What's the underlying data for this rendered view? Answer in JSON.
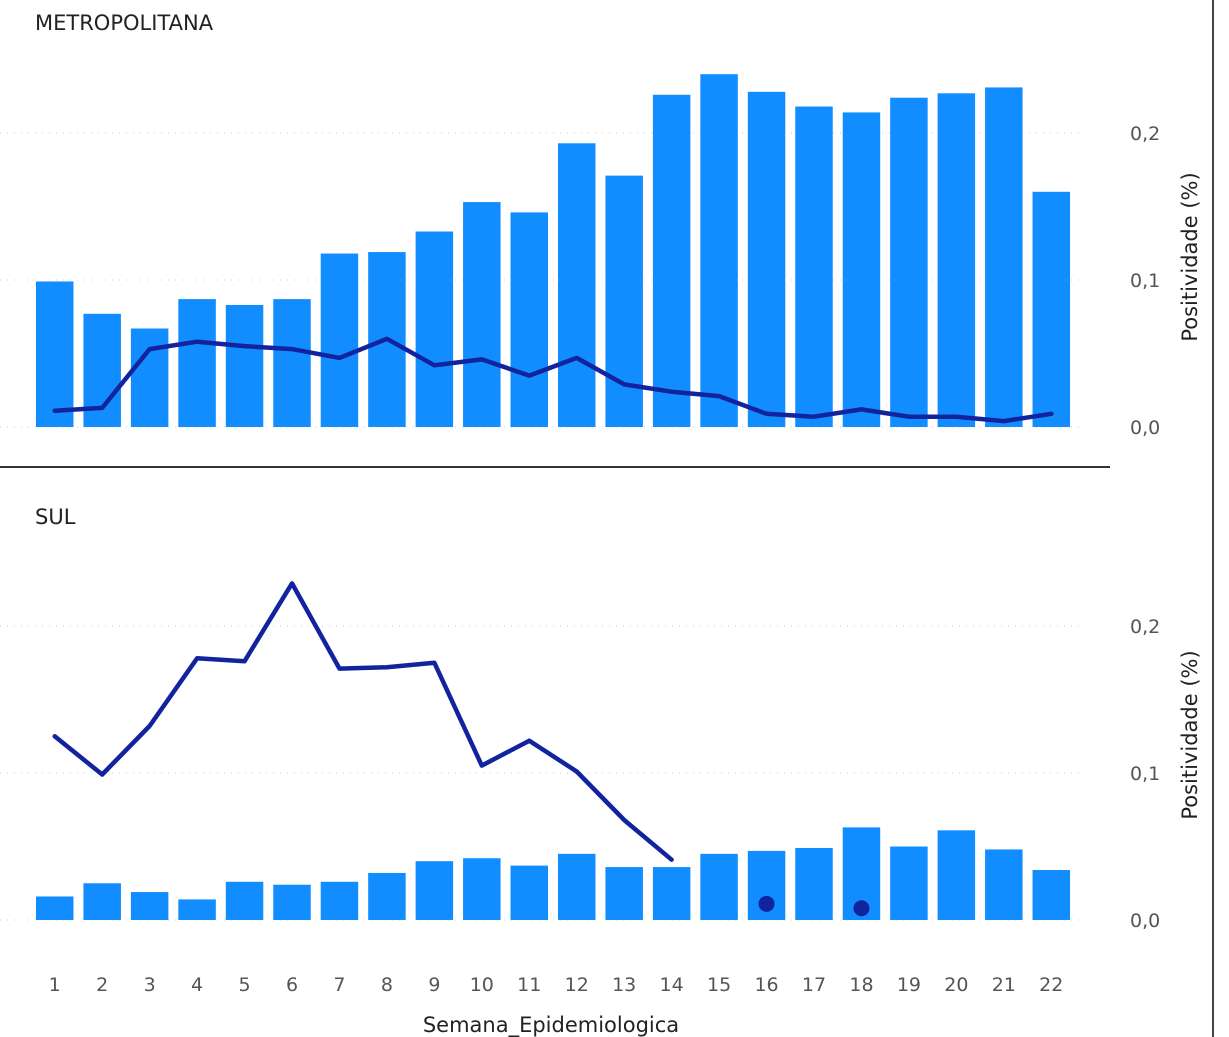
{
  "colors": {
    "bar": "#118DFF",
    "line": "#12239E",
    "grid": "#c8c8c8",
    "text": "#222222",
    "tick": "#555555"
  },
  "chart_data": {
    "type": "bar",
    "xlabel": "Semana_Epidemiologica",
    "ylabel": "Positividade (%)",
    "categories": [
      "1",
      "2",
      "3",
      "4",
      "5",
      "6",
      "7",
      "8",
      "9",
      "10",
      "11",
      "12",
      "13",
      "14",
      "15",
      "16",
      "17",
      "18",
      "19",
      "20",
      "21",
      "22"
    ],
    "grid": true,
    "panels": [
      {
        "title": "METROPOLITANA",
        "ylim": [
          0,
          0.2
        ],
        "yticks": [
          "0,0",
          "0,1",
          "0,2"
        ],
        "bars": [
          0.099,
          0.077,
          0.067,
          0.087,
          0.083,
          0.087,
          0.118,
          0.119,
          0.133,
          0.153,
          0.146,
          0.193,
          0.171,
          0.226,
          0.24,
          0.228,
          0.218,
          0.214,
          0.224,
          0.227,
          0.231,
          0.16
        ],
        "line": [
          0.011,
          0.013,
          0.053,
          0.058,
          0.055,
          0.053,
          0.047,
          0.06,
          0.042,
          0.046,
          0.035,
          0.047,
          0.029,
          0.024,
          0.021,
          0.009,
          0.007,
          0.012,
          0.007,
          0.007,
          0.004,
          0.009
        ],
        "points": []
      },
      {
        "title": "SUL",
        "ylim": [
          0,
          0.2
        ],
        "yticks": [
          "0,0",
          "0,1",
          "0,2"
        ],
        "bars": [
          0.016,
          0.025,
          0.019,
          0.014,
          0.026,
          0.024,
          0.026,
          0.032,
          0.04,
          0.042,
          0.037,
          0.045,
          0.036,
          0.036,
          0.045,
          0.047,
          0.049,
          0.063,
          0.05,
          0.061,
          0.048,
          0.034
        ],
        "line": [
          0.125,
          0.099,
          0.132,
          0.178,
          0.176,
          0.229,
          0.171,
          0.172,
          0.175,
          0.105,
          0.122,
          0.101,
          0.068,
          0.041,
          null,
          null,
          null,
          null,
          null,
          null,
          null,
          null
        ],
        "points": [
          {
            "x": "16",
            "y": 0.011
          },
          {
            "x": "18",
            "y": 0.008
          }
        ]
      }
    ]
  }
}
